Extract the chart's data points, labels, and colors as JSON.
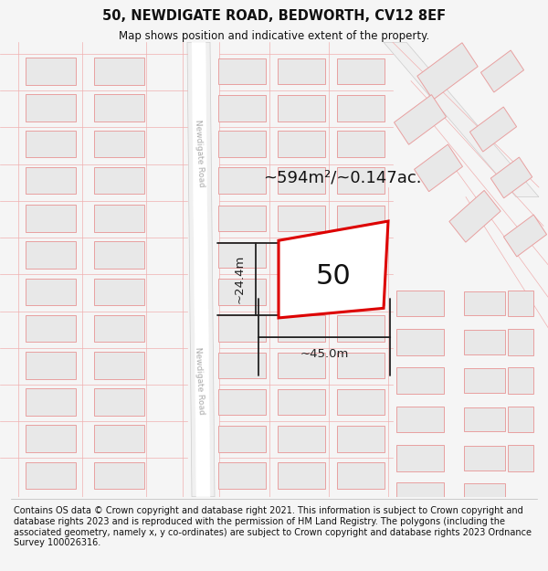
{
  "title": "50, NEWDIGATE ROAD, BEDWORTH, CV12 8EF",
  "subtitle": "Map shows position and indicative extent of the property.",
  "footer": "Contains OS data © Crown copyright and database right 2021. This information is subject to Crown copyright and database rights 2023 and is reproduced with the permission of HM Land Registry. The polygons (including the associated geometry, namely x, y co-ordinates) are subject to Crown copyright and database rights 2023 Ordnance Survey 100026316.",
  "area_label": "~594m²/~0.147ac.",
  "width_label": "~45.0m",
  "height_label": "~24.4m",
  "number_label": "50",
  "bg_color": "#f5f5f5",
  "map_bg": "#ffffff",
  "building_fill": "#e8e8e8",
  "building_stroke": "#e8a0a0",
  "property_stroke": "#dd0000",
  "property_fill": "#ffffff",
  "dim_color": "#222222",
  "title_color": "#111111",
  "footer_color": "#111111",
  "road_label_color": "#aaaaaa",
  "title_fontsize": 10.5,
  "subtitle_fontsize": 8.5,
  "area_fontsize": 13,
  "number_fontsize": 22,
  "dim_fontsize": 9.5,
  "footer_fontsize": 7.0
}
